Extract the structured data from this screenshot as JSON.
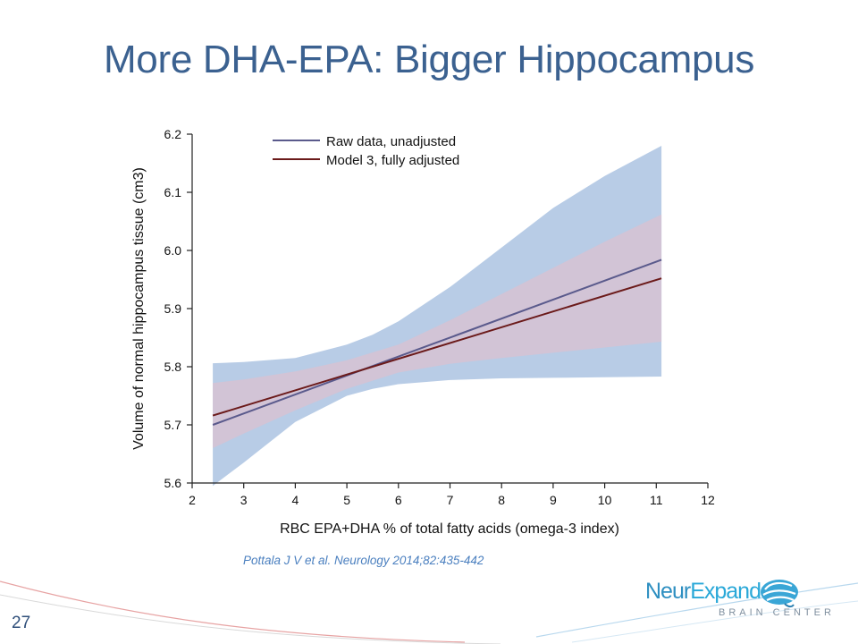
{
  "slide": {
    "title": "More DHA-EPA: Bigger Hippocampus",
    "citation": "Pottala J V et al. Neurology 2014;82:435-442",
    "page_number": "27",
    "logo": {
      "brand_part1": "Neur",
      "brand_part2": "Expand",
      "tagline": "BRAIN CENTER"
    }
  },
  "colors": {
    "title": "#3b6190",
    "raw_line": "#5a5a8c",
    "model3_line": "#6b1a1a",
    "raw_ci_fill": "#b8cce6",
    "model3_ci_fill": "#d6c2d2"
  },
  "chart_data": {
    "type": "line",
    "xlabel": "RBC EPA+DHA % of total fatty acids (omega-3 index)",
    "ylabel": "Volume of normal hippocampus tissue (cm3)",
    "xlim": [
      2,
      12
    ],
    "ylim": [
      5.6,
      6.2
    ],
    "xticks": [
      2,
      3,
      4,
      5,
      6,
      7,
      8,
      9,
      10,
      11,
      12
    ],
    "yticks": [
      5.6,
      5.7,
      5.8,
      5.9,
      6.0,
      6.1,
      6.2
    ],
    "ytick_labels": [
      "5.6",
      "5.7",
      "5.8",
      "5.9",
      "6.0",
      "6.1",
      "6.2"
    ],
    "grid": false,
    "legend_position": "top-left",
    "series": [
      {
        "name": "Raw data, unadjusted",
        "x": [
          2.4,
          11.1
        ],
        "y": [
          5.7,
          5.984
        ],
        "ci": {
          "x": [
            2.4,
            3,
            4,
            5,
            5.5,
            6,
            7,
            8,
            9,
            10,
            11.1
          ],
          "lower": [
            5.595,
            5.635,
            5.705,
            5.75,
            5.762,
            5.77,
            5.777,
            5.78,
            5.781,
            5.782,
            5.783
          ],
          "upper": [
            5.806,
            5.808,
            5.815,
            5.838,
            5.855,
            5.878,
            5.937,
            6.005,
            6.073,
            6.128,
            6.18
          ]
        }
      },
      {
        "name": "Model 3, fully adjusted",
        "x": [
          2.4,
          11.1
        ],
        "y": [
          5.716,
          5.952
        ],
        "ci": {
          "x": [
            2.4,
            3,
            4,
            5,
            6,
            7,
            8,
            9,
            10,
            11.1
          ],
          "lower": [
            5.66,
            5.685,
            5.725,
            5.762,
            5.79,
            5.805,
            5.815,
            5.824,
            5.833,
            5.843
          ],
          "upper": [
            5.772,
            5.778,
            5.792,
            5.811,
            5.838,
            5.88,
            5.925,
            5.97,
            6.015,
            6.062
          ]
        }
      }
    ]
  }
}
